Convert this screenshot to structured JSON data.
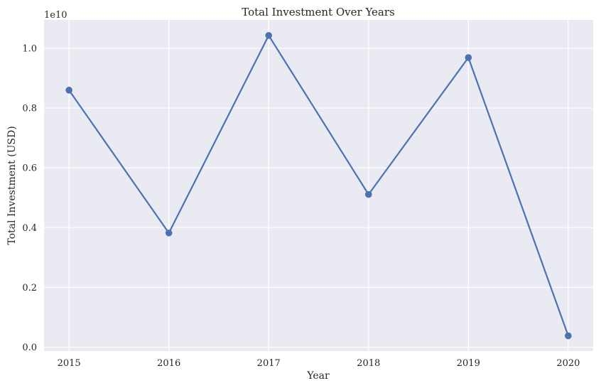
{
  "chart_data": {
    "type": "line",
    "title": "Total Investment Over Years",
    "xlabel": "Year",
    "ylabel": "Total Investment (USD)",
    "y_offset_label": "1e10",
    "x": [
      2015,
      2016,
      2017,
      2018,
      2019,
      2020
    ],
    "x_tick_labels": [
      "2015",
      "2016",
      "2017",
      "2018",
      "2019",
      "2020"
    ],
    "y_ticks": [
      0.0,
      0.2,
      0.4,
      0.6,
      0.8,
      1.0
    ],
    "y_tick_labels": [
      "0.0",
      "0.2",
      "0.4",
      "0.6",
      "0.8",
      "1.0"
    ],
    "ylim": [
      -0.013,
      1.095
    ],
    "xlim": [
      2014.75,
      2020.25
    ],
    "y_scale": 10000000000,
    "grid": true,
    "legend": "none",
    "series": [
      {
        "values": [
          8600000000,
          3820000000,
          10430000000,
          5110000000,
          9690000000,
          380000000
        ],
        "color": "#4c72b0",
        "marker": "circle"
      }
    ],
    "background_color": "#eaeaf2"
  }
}
